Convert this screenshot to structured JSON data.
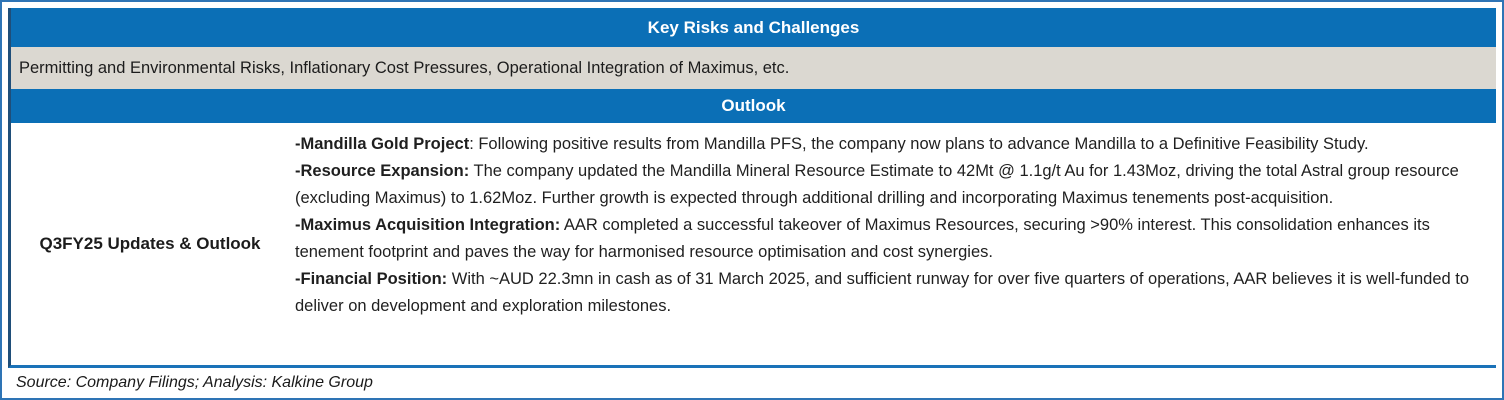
{
  "table": {
    "key_risks_header": "Key Risks and Challenges",
    "risks_text": "Permitting and Environmental Risks, Inflationary Cost Pressures, Operational Integration of Maximus, etc.",
    "outlook_header": "Outlook",
    "outlook_label": "Q3FY25 Updates & Outlook",
    "outlook_items": [
      {
        "lead": "-Mandilla Gold Project",
        "body": ": Following positive results from Mandilla PFS, the company now plans to advance Mandilla to a Definitive Feasibility Study."
      },
      {
        "lead": "-Resource Expansion:",
        "body": " The company updated the Mandilla Mineral Resource Estimate to 42Mt @ 1.1g/t Au for 1.43Moz, driving the total Astral group resource (excluding Maximus) to 1.62Moz. Further growth is expected through additional drilling and incorporating Maximus tenements post-acquisition."
      },
      {
        "lead": "-Maximus Acquisition Integration:",
        "body": " AAR completed a successful takeover of Maximus Resources, securing >90% interest. This consolidation enhances its tenement footprint and paves the way for harmonised resource optimisation and cost synergies."
      },
      {
        "lead": "-Financial Position:",
        "body": " With ~AUD 22.3mn in cash as of 31 March 2025, and sufficient runway for over five quarters of operations, AAR believes it is well-funded to deliver on development and exploration milestones."
      }
    ]
  },
  "footer": {
    "source": "Source: Company Filings; Analysis: Kalkine Group"
  },
  "colors": {
    "header_blue": "#0b6fb6",
    "frame_border_blue": "#2e74b5",
    "table_left_border_navy": "#1f4e79",
    "table_bottom_rule_blue": "#1a72b8",
    "risks_row_gray": "#dbd8d1",
    "header_text": "#ffffff",
    "body_text": "#1f1f1f"
  }
}
